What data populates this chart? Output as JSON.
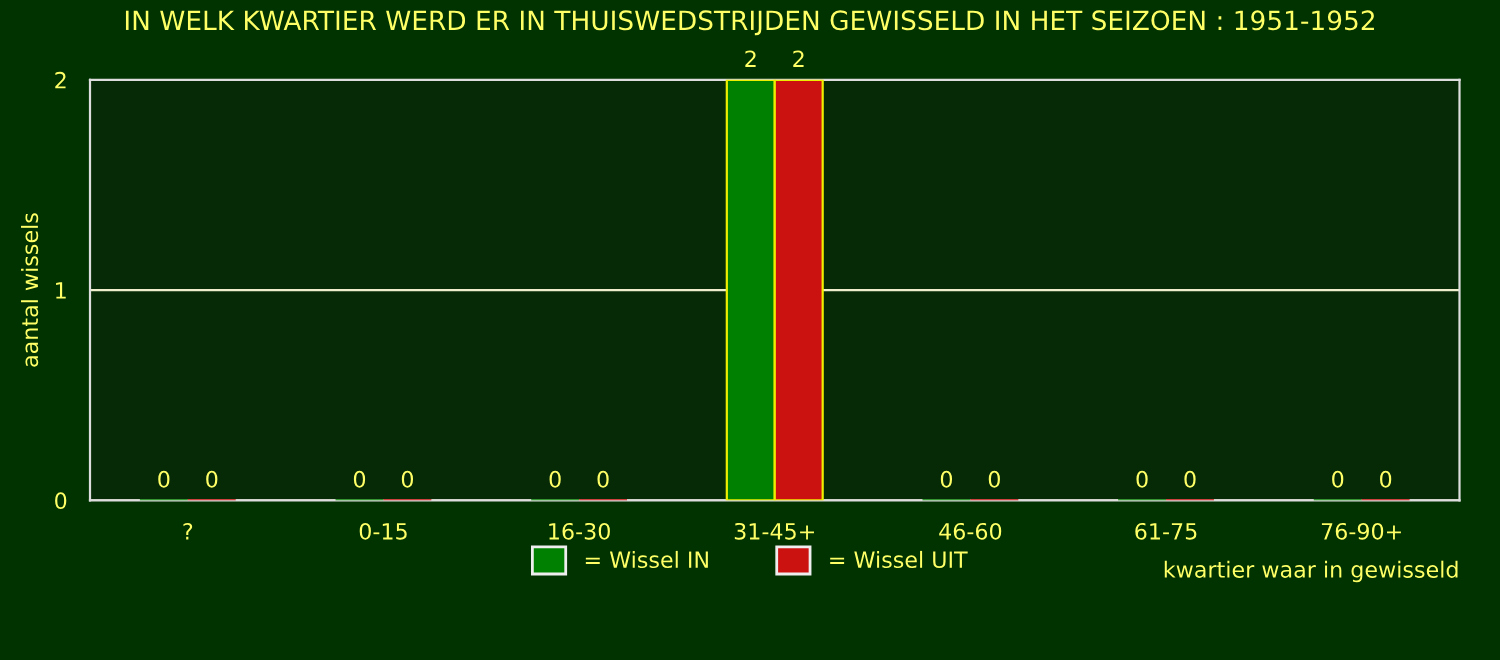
{
  "chart_data": {
    "type": "bar",
    "title": "IN WELK KWARTIER WERD ER IN THUISWEDSTRIJDEN GEWISSELD IN HET SEIZOEN : 1951-1952",
    "xlabel": "kwartier waar in gewisseld",
    "ylabel": "aantal wissels",
    "categories": [
      "?",
      "0-15",
      "16-30",
      "31-45+",
      "46-60",
      "61-75",
      "76-90+"
    ],
    "series": [
      {
        "name": "= Wissel IN",
        "color": "#008000",
        "values": [
          0,
          0,
          0,
          2,
          0,
          0,
          0
        ]
      },
      {
        "name": "= Wissel UIT",
        "color": "#cc1111",
        "values": [
          0,
          0,
          0,
          2,
          0,
          0,
          0
        ]
      }
    ],
    "ylim": [
      0,
      2
    ],
    "yticks": [
      0,
      1,
      2
    ],
    "grid": "y",
    "legend": "bottom",
    "data_labels": true
  }
}
